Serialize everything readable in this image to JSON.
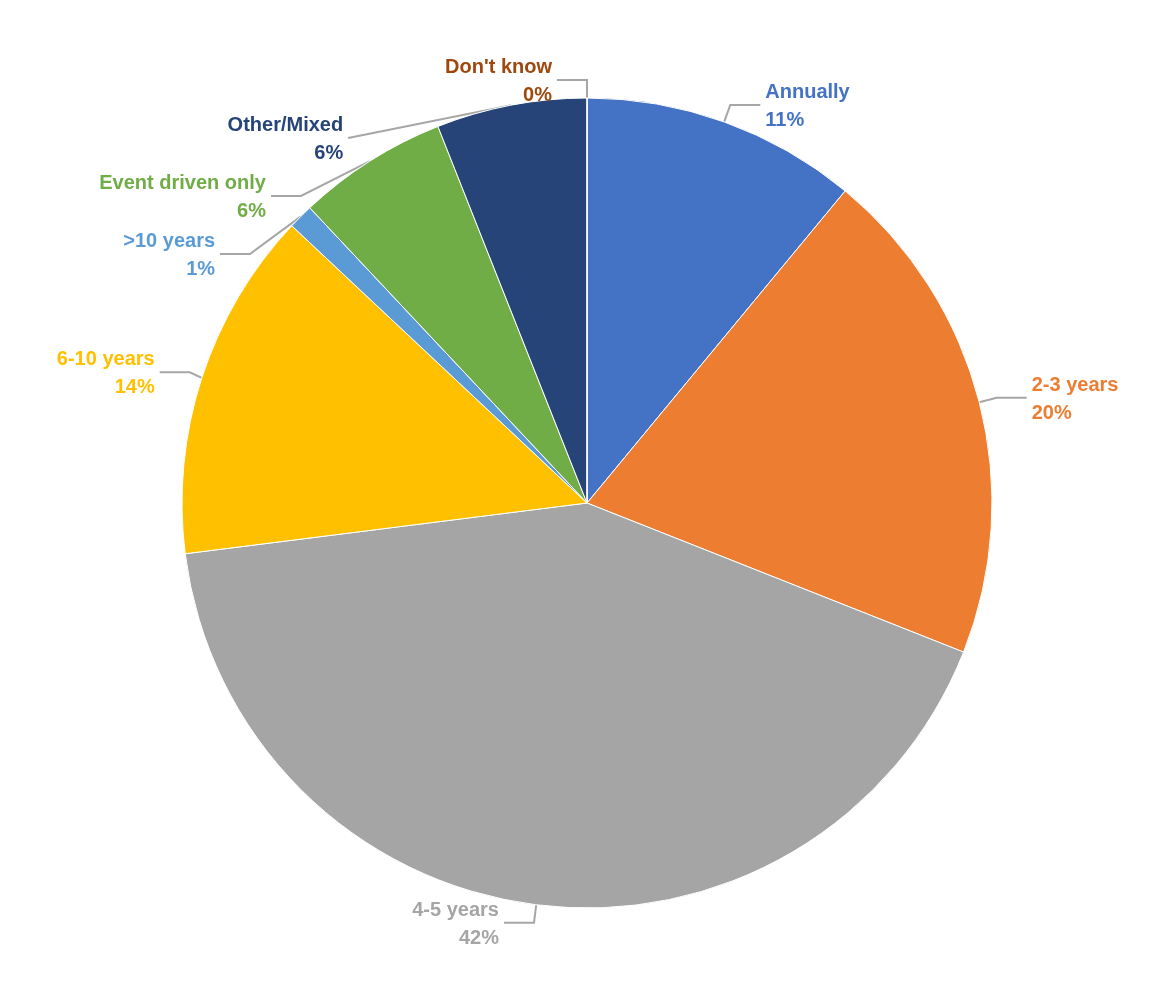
{
  "chart_data": {
    "type": "pie",
    "categories": [
      "Annually",
      "2-3 years",
      "4-5 years",
      "6-10 years",
      ">10 years",
      "Event driven only",
      "Other/Mixed",
      "Don't know"
    ],
    "values": [
      11,
      20,
      42,
      14,
      1,
      6,
      6,
      0
    ],
    "value_labels": [
      "11%",
      "20%",
      "42%",
      "14%",
      "1%",
      "6%",
      "6%",
      "0%"
    ],
    "colors": [
      "#4472c4",
      "#ed7d31",
      "#a5a5a5",
      "#ffc000",
      "#5b9bd5",
      "#70ad47",
      "#264478",
      "#9e480e"
    ],
    "legend": false
  }
}
